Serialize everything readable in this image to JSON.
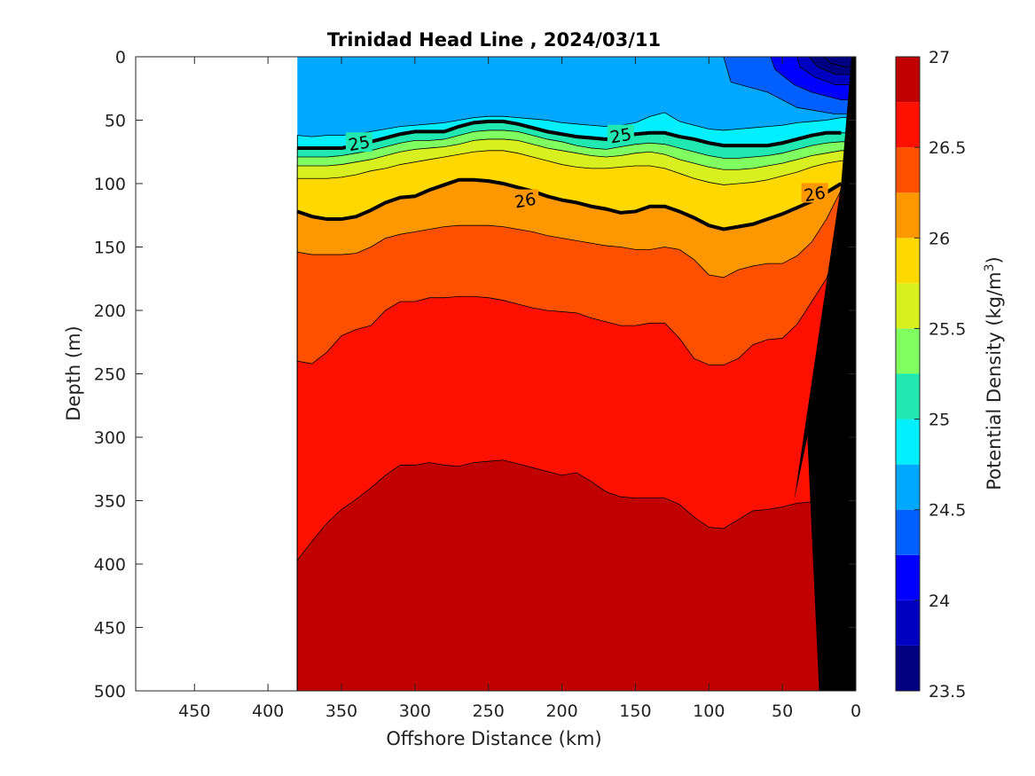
{
  "chart_data": {
    "type": "contour",
    "title": "Trinidad Head Line , 2024/03/11",
    "xlabel": "Offshore Distance (km)",
    "ylabel": "Depth (m)",
    "colorbar_label": "Potential Density (kg/m",
    "colorbar_label_superscript": "3",
    "colorbar_label_suffix": ")",
    "xlim": [
      490,
      0
    ],
    "x_reversed": true,
    "ylim": [
      0,
      500
    ],
    "y_reversed": true,
    "x_ticks": [
      450,
      400,
      350,
      300,
      250,
      200,
      150,
      100,
      50,
      0
    ],
    "y_ticks": [
      0,
      50,
      100,
      150,
      200,
      250,
      300,
      350,
      400,
      450,
      500
    ],
    "colorbar_range": [
      23.5,
      27
    ],
    "colorbar_ticks": [
      23.5,
      24,
      24.5,
      25,
      25.5,
      26,
      26.5,
      27
    ],
    "contour_interval": 0.25,
    "labeled_isopycnals": [
      25,
      26
    ],
    "contour_labels": [
      {
        "text": "25",
        "x": 338,
        "y": 68
      },
      {
        "text": "25",
        "x": 160,
        "y": 62
      },
      {
        "text": "26",
        "x": 225,
        "y": 113
      },
      {
        "text": "26",
        "x": 28,
        "y": 108
      }
    ],
    "level_colors": [
      "#000080",
      "#0000c0",
      "#0000ff",
      "#0060ff",
      "#00a8ff",
      "#00f0ff",
      "#20e8b0",
      "#80ff60",
      "#d8f020",
      "#ffd800",
      "#ff9800",
      "#ff5000",
      "#ff1000",
      "#c00000"
    ],
    "isopycnal_depths": {
      "x": [
        380,
        370,
        360,
        350,
        340,
        330,
        320,
        310,
        300,
        290,
        280,
        270,
        260,
        250,
        240,
        230,
        220,
        210,
        200,
        190,
        180,
        170,
        160,
        150,
        140,
        130,
        120,
        110,
        100,
        90,
        80,
        70,
        60,
        50,
        40,
        30,
        20,
        10
      ],
      "24.75": [
        62,
        63,
        62,
        62,
        61,
        59,
        57,
        55,
        54,
        53,
        52,
        50,
        48,
        47,
        47,
        48,
        49,
        50,
        52,
        53,
        54,
        55,
        54,
        52,
        47,
        44,
        51,
        54,
        57,
        58,
        57,
        56,
        55,
        54,
        52,
        51,
        50,
        48
      ],
      "25": [
        72,
        72,
        72,
        72,
        70,
        67,
        64,
        61,
        59,
        59,
        59,
        55,
        52,
        51,
        51,
        53,
        56,
        59,
        61,
        63,
        64,
        65,
        63,
        61,
        60,
        60,
        63,
        65,
        68,
        70,
        70,
        70,
        70,
        68,
        65,
        62,
        60,
        60
      ],
      "25.25": [
        79,
        79,
        79,
        78,
        76,
        74,
        71,
        68,
        66,
        66,
        65,
        62,
        59,
        58,
        58,
        59,
        62,
        65,
        67,
        70,
        72,
        73,
        71,
        69,
        68,
        69,
        72,
        75,
        78,
        80,
        80,
        79,
        78,
        76,
        73,
        70,
        68,
        67
      ],
      "25.5": [
        86,
        86,
        86,
        85,
        83,
        81,
        78,
        75,
        73,
        72,
        71,
        69,
        66,
        65,
        65,
        66,
        69,
        72,
        74,
        76,
        78,
        79,
        78,
        76,
        75,
        77,
        81,
        84,
        87,
        89,
        89,
        88,
        86,
        84,
        81,
        78,
        76,
        74
      ],
      "25.75": [
        96,
        96,
        96,
        95,
        93,
        90,
        88,
        85,
        83,
        81,
        79,
        77,
        75,
        74,
        74,
        76,
        79,
        82,
        85,
        87,
        88,
        88,
        87,
        86,
        86,
        88,
        92,
        96,
        99,
        101,
        100,
        99,
        97,
        94,
        91,
        87,
        84,
        82
      ],
      "26": [
        122,
        126,
        128,
        128,
        126,
        121,
        115,
        111,
        110,
        105,
        101,
        97,
        97,
        98,
        100,
        103,
        106,
        110,
        113,
        115,
        118,
        120,
        123,
        122,
        118,
        118,
        122,
        127,
        133,
        136,
        134,
        132,
        128,
        124,
        119,
        114,
        107,
        100
      ],
      "26.25": [
        154,
        156,
        156,
        156,
        155,
        150,
        143,
        140,
        138,
        136,
        134,
        133,
        133,
        133,
        134,
        136,
        138,
        141,
        143,
        145,
        147,
        149,
        150,
        152,
        152,
        150,
        152,
        160,
        172,
        174,
        168,
        165,
        163,
        163,
        157,
        146,
        128,
        105
      ],
      "26.5": [
        240,
        242,
        233,
        220,
        215,
        212,
        200,
        193,
        193,
        190,
        190,
        189,
        189,
        190,
        192,
        195,
        198,
        200,
        201,
        202,
        206,
        209,
        212,
        212,
        210,
        210,
        222,
        238,
        243,
        243,
        238,
        227,
        223,
        222,
        211,
        193,
        175,
        140
      ],
      "26.75": [
        397,
        382,
        368,
        357,
        349,
        340,
        330,
        322,
        322,
        320,
        322,
        323,
        320,
        319,
        318,
        321,
        324,
        327,
        330,
        328,
        335,
        343,
        347,
        348,
        348,
        348,
        353,
        363,
        371,
        372,
        365,
        358,
        357,
        355,
        352,
        351,
        335,
        300
      ]
    },
    "surface_isopycnals": {
      "24.5": [
        [
          90,
          0
        ],
        [
          85,
          20
        ],
        [
          60,
          28
        ],
        [
          40,
          40
        ],
        [
          15,
          45
        ]
      ],
      "24.25": [
        [
          58,
          0
        ],
        [
          55,
          10
        ],
        [
          42,
          22
        ],
        [
          30,
          28
        ],
        [
          10,
          34
        ]
      ],
      "24": [
        [
          40,
          0
        ],
        [
          38,
          8
        ],
        [
          28,
          16
        ],
        [
          14,
          22
        ]
      ],
      "23.75": [
        [
          32,
          0
        ],
        [
          26,
          8
        ],
        [
          14,
          14
        ]
      ],
      "23.5": [
        [
          22,
          0
        ],
        [
          17,
          5
        ],
        [
          8,
          8
        ]
      ]
    },
    "bottom_topography": [
      [
        25,
        500
      ],
      [
        33,
        300
      ],
      [
        42,
        350
      ],
      [
        10,
        100
      ],
      [
        3,
        0
      ],
      [
        0,
        0
      ],
      [
        0,
        500
      ]
    ],
    "data_extent_x": [
      380,
      0
    ]
  }
}
